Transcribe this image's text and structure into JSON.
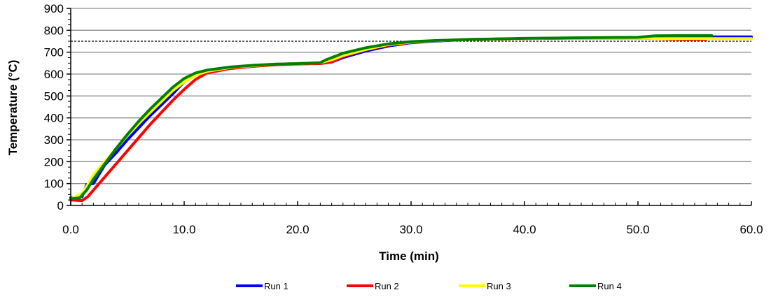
{
  "chart_data": {
    "type": "line",
    "title": "",
    "xlabel": "Time (min)",
    "ylabel": "Temperature (°C)",
    "xlim": [
      0,
      60
    ],
    "ylim": [
      0,
      900
    ],
    "x_ticks": [
      "0.0",
      "10.0",
      "20.0",
      "30.0",
      "40.0",
      "50.0",
      "60.0"
    ],
    "y_ticks": [
      "0",
      "100",
      "200",
      "300",
      "400",
      "500",
      "600",
      "700",
      "800",
      "900"
    ],
    "grid": {
      "horizontal": true,
      "vertical": false
    },
    "reference_line": {
      "y": 750,
      "style": "dashed"
    },
    "legend_position": "bottom",
    "series": [
      {
        "name": "Run 1",
        "color": "#0000FF",
        "points": [
          [
            0,
            35
          ],
          [
            1,
            40
          ],
          [
            1.4,
            95
          ],
          [
            2,
            100
          ],
          [
            3,
            185
          ],
          [
            4,
            240
          ],
          [
            5,
            300
          ],
          [
            6,
            355
          ],
          [
            7,
            410
          ],
          [
            8,
            460
          ],
          [
            9,
            510
          ],
          [
            10,
            565
          ],
          [
            11,
            595
          ],
          [
            12,
            612
          ],
          [
            14,
            630
          ],
          [
            16,
            638
          ],
          [
            18,
            645
          ],
          [
            20,
            648
          ],
          [
            22,
            650
          ],
          [
            23,
            655
          ],
          [
            24,
            675
          ],
          [
            26,
            705
          ],
          [
            28,
            728
          ],
          [
            30,
            743
          ],
          [
            32,
            750
          ],
          [
            35,
            758
          ],
          [
            40,
            762
          ],
          [
            45,
            765
          ],
          [
            50,
            767
          ],
          [
            51.5,
            768
          ],
          [
            54,
            770
          ],
          [
            58,
            770
          ],
          [
            60,
            770
          ]
        ]
      },
      {
        "name": "Run 2",
        "color": "#FF0000",
        "points": [
          [
            0,
            25
          ],
          [
            1,
            22
          ],
          [
            1.5,
            40
          ],
          [
            2,
            70
          ],
          [
            3,
            130
          ],
          [
            4,
            190
          ],
          [
            5,
            250
          ],
          [
            6,
            310
          ],
          [
            7,
            370
          ],
          [
            8,
            425
          ],
          [
            9,
            480
          ],
          [
            10,
            530
          ],
          [
            11,
            575
          ],
          [
            12,
            605
          ],
          [
            14,
            625
          ],
          [
            16,
            635
          ],
          [
            18,
            642
          ],
          [
            20,
            646
          ],
          [
            22,
            648
          ],
          [
            23,
            655
          ],
          [
            24,
            680
          ],
          [
            26,
            712
          ],
          [
            28,
            732
          ],
          [
            30,
            745
          ],
          [
            32,
            752
          ],
          [
            35,
            758
          ],
          [
            40,
            762
          ],
          [
            45,
            764
          ],
          [
            50,
            765
          ],
          [
            51.5,
            762
          ],
          [
            54,
            758
          ],
          [
            56,
            758
          ]
        ]
      },
      {
        "name": "Run 3",
        "color": "#FFFF00",
        "points": [
          [
            0,
            30
          ],
          [
            1,
            55
          ],
          [
            1.5,
            95
          ],
          [
            2,
            140
          ],
          [
            3,
            200
          ],
          [
            4,
            260
          ],
          [
            5,
            320
          ],
          [
            6,
            375
          ],
          [
            7,
            425
          ],
          [
            8,
            475
          ],
          [
            9,
            525
          ],
          [
            10,
            565
          ],
          [
            11,
            595
          ],
          [
            12,
            612
          ],
          [
            14,
            630
          ],
          [
            16,
            638
          ],
          [
            18,
            645
          ],
          [
            20,
            648
          ],
          [
            22,
            652
          ],
          [
            23,
            665
          ],
          [
            24,
            685
          ],
          [
            26,
            712
          ],
          [
            28,
            735
          ],
          [
            30,
            746
          ],
          [
            32,
            752
          ],
          [
            35,
            758
          ],
          [
            40,
            762
          ],
          [
            45,
            765
          ],
          [
            50,
            766
          ],
          [
            51.5,
            762
          ],
          [
            54,
            762
          ],
          [
            58,
            762
          ],
          [
            60,
            762
          ]
        ]
      },
      {
        "name": "Run 4",
        "color": "#008000",
        "points": [
          [
            0,
            30
          ],
          [
            0.8,
            35
          ],
          [
            1.4,
            70
          ],
          [
            2,
            120
          ],
          [
            3,
            190
          ],
          [
            4,
            260
          ],
          [
            5,
            325
          ],
          [
            6,
            385
          ],
          [
            7,
            440
          ],
          [
            8,
            490
          ],
          [
            9,
            540
          ],
          [
            10,
            580
          ],
          [
            11,
            605
          ],
          [
            12,
            618
          ],
          [
            14,
            632
          ],
          [
            16,
            640
          ],
          [
            18,
            645
          ],
          [
            20,
            648
          ],
          [
            22,
            652
          ],
          [
            22.5,
            665
          ],
          [
            23,
            675
          ],
          [
            24,
            695
          ],
          [
            26,
            720
          ],
          [
            28,
            738
          ],
          [
            30,
            748
          ],
          [
            32,
            753
          ],
          [
            35,
            758
          ],
          [
            40,
            763
          ],
          [
            45,
            766
          ],
          [
            50,
            768
          ],
          [
            51.5,
            775
          ],
          [
            54,
            776
          ],
          [
            56.5,
            776
          ]
        ]
      }
    ]
  }
}
